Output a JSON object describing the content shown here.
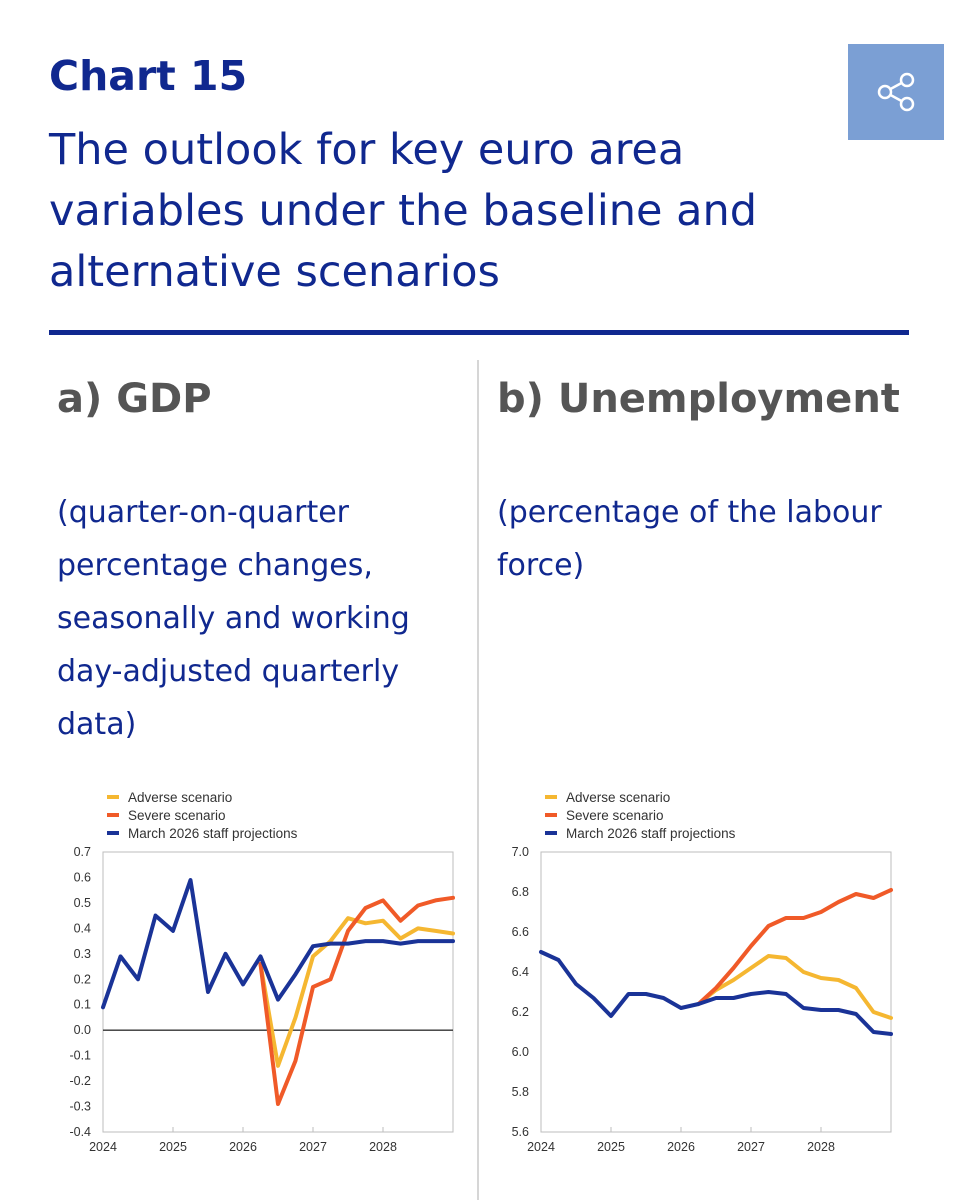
{
  "header": {
    "chart_label": "Chart 15",
    "title": "The outlook for key euro area variables under the baseline and alternative scenarios"
  },
  "share_icon": "share-icon",
  "colors": {
    "brand": "#10288f",
    "adverse": "#f5b731",
    "severe": "#f05a28",
    "baseline": "#1a3397",
    "share_bg": "#7b9fd4"
  },
  "panels": [
    {
      "title": "a) GDP",
      "subtitle": "(quarter-on-quarter percentage changes, seasonally and working day-adjusted quarterly data)"
    },
    {
      "title": "b) Unemployment",
      "subtitle": "(percentage of the labour force)"
    }
  ],
  "chart_data": [
    {
      "type": "line",
      "legend": [
        "Adverse scenario",
        "Severe scenario",
        "March 2026 staff projections"
      ],
      "legend_position": "top-left",
      "grid": false,
      "zero_line": true,
      "x_ticks": [
        "2024",
        "2025",
        "2026",
        "2027",
        "2028"
      ],
      "x_range": [
        2024,
        2029
      ],
      "y_ticks": [
        "0.7",
        "0.6",
        "0.5",
        "0.4",
        "0.3",
        "0.2",
        "0.1",
        "0.0",
        "-0.1",
        "-0.2",
        "-0.3",
        "-0.4"
      ],
      "ylim": [
        -0.4,
        0.7
      ],
      "series": [
        {
          "name": "Adverse scenario",
          "color": "#f5b731",
          "x": [
            2026.25,
            2026.5,
            2026.75,
            2027,
            2027.25,
            2027.5,
            2027.75,
            2028,
            2028.25,
            2028.5,
            2028.75,
            2029
          ],
          "y": [
            0.26,
            -0.14,
            0.05,
            0.29,
            0.35,
            0.44,
            0.42,
            0.43,
            0.36,
            0.4,
            0.39,
            0.38
          ]
        },
        {
          "name": "Severe scenario",
          "color": "#f05a28",
          "x": [
            2026.25,
            2026.5,
            2026.75,
            2027,
            2027.25,
            2027.5,
            2027.75,
            2028,
            2028.25,
            2028.5,
            2028.75,
            2029
          ],
          "y": [
            0.26,
            -0.29,
            -0.12,
            0.17,
            0.2,
            0.39,
            0.48,
            0.51,
            0.43,
            0.49,
            0.51,
            0.52
          ]
        },
        {
          "name": "March 2026 staff projections",
          "color": "#1a3397",
          "x": [
            2024,
            2024.25,
            2024.5,
            2024.75,
            2025,
            2025.25,
            2025.5,
            2025.75,
            2026,
            2026.25,
            2026.5,
            2026.75,
            2027,
            2027.25,
            2027.5,
            2027.75,
            2028,
            2028.25,
            2028.5,
            2028.75,
            2029
          ],
          "y": [
            0.09,
            0.29,
            0.2,
            0.45,
            0.39,
            0.59,
            0.15,
            0.3,
            0.18,
            0.29,
            0.12,
            0.22,
            0.33,
            0.34,
            0.34,
            0.35,
            0.35,
            0.34,
            0.35,
            0.35,
            0.35
          ]
        }
      ]
    },
    {
      "type": "line",
      "legend": [
        "Adverse scenario",
        "Severe scenario",
        "March 2026 staff projections"
      ],
      "legend_position": "top-left",
      "grid": false,
      "zero_line": false,
      "x_ticks": [
        "2024",
        "2025",
        "2026",
        "2027",
        "2028"
      ],
      "x_range": [
        2024,
        2029
      ],
      "y_ticks": [
        "7.0",
        "6.8",
        "6.6",
        "6.4",
        "6.2",
        "6.0",
        "5.8",
        "5.6"
      ],
      "ylim": [
        5.6,
        7.0
      ],
      "series": [
        {
          "name": "Adverse scenario",
          "color": "#f5b731",
          "x": [
            2026.25,
            2026.5,
            2026.75,
            2027,
            2027.25,
            2027.5,
            2027.75,
            2028,
            2028.25,
            2028.5,
            2028.75,
            2029
          ],
          "y": [
            6.24,
            6.31,
            6.36,
            6.42,
            6.48,
            6.47,
            6.4,
            6.37,
            6.36,
            6.32,
            6.2,
            6.17
          ]
        },
        {
          "name": "Severe scenario",
          "color": "#f05a28",
          "x": [
            2026.25,
            2026.5,
            2026.75,
            2027,
            2027.25,
            2027.5,
            2027.75,
            2028,
            2028.25,
            2028.5,
            2028.75,
            2029
          ],
          "y": [
            6.24,
            6.32,
            6.42,
            6.53,
            6.63,
            6.67,
            6.67,
            6.7,
            6.75,
            6.79,
            6.77,
            6.81
          ]
        },
        {
          "name": "March 2026 staff projections",
          "color": "#1a3397",
          "x": [
            2024,
            2024.25,
            2024.5,
            2024.75,
            2025,
            2025.25,
            2025.5,
            2025.75,
            2026,
            2026.25,
            2026.5,
            2026.75,
            2027,
            2027.25,
            2027.5,
            2027.75,
            2028,
            2028.25,
            2028.5,
            2028.75,
            2029
          ],
          "y": [
            6.5,
            6.46,
            6.34,
            6.27,
            6.18,
            6.29,
            6.29,
            6.27,
            6.22,
            6.24,
            6.27,
            6.27,
            6.29,
            6.3,
            6.29,
            6.22,
            6.21,
            6.21,
            6.19,
            6.1,
            6.09
          ]
        }
      ]
    }
  ]
}
